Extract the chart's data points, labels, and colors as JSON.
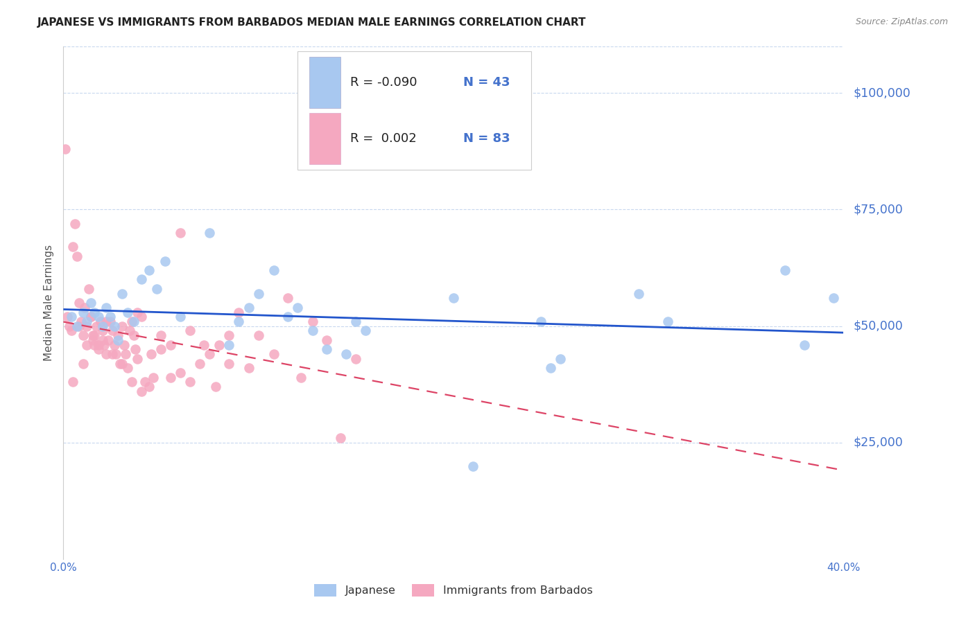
{
  "title": "JAPANESE VS IMMIGRANTS FROM BARBADOS MEDIAN MALE EARNINGS CORRELATION CHART",
  "source": "Source: ZipAtlas.com",
  "ylabel": "Median Male Earnings",
  "xlim": [
    0.0,
    0.4
  ],
  "ylim": [
    0,
    110000
  ],
  "ytick_vals": [
    25000,
    50000,
    75000,
    100000
  ],
  "ytick_labels": [
    "$25,000",
    "$50,000",
    "$75,000",
    "$100,000"
  ],
  "xtick_vals": [
    0.0,
    0.05,
    0.1,
    0.15,
    0.2,
    0.25,
    0.3,
    0.35,
    0.4
  ],
  "xtick_labels": [
    "0.0%",
    "",
    "",
    "",
    "",
    "",
    "",
    "",
    "40.0%"
  ],
  "legend_r_japanese": "-0.090",
  "legend_n_japanese": "43",
  "legend_r_barbados": "0.002",
  "legend_n_barbados": "83",
  "japanese_color": "#a8c8f0",
  "barbados_color": "#f5a8c0",
  "trend_japanese_color": "#2255cc",
  "trend_barbados_color": "#dd4466",
  "background_color": "#ffffff",
  "grid_color": "#c8d8ee",
  "axis_color": "#4472cc",
  "r_text_color": "#222222",
  "japanese_x": [
    0.004,
    0.007,
    0.01,
    0.012,
    0.014,
    0.016,
    0.018,
    0.02,
    0.022,
    0.024,
    0.026,
    0.028,
    0.03,
    0.033,
    0.036,
    0.04,
    0.044,
    0.048,
    0.052,
    0.06,
    0.075,
    0.085,
    0.09,
    0.095,
    0.1,
    0.108,
    0.115,
    0.12,
    0.128,
    0.135,
    0.145,
    0.15,
    0.155,
    0.2,
    0.21,
    0.245,
    0.25,
    0.255,
    0.295,
    0.31,
    0.37,
    0.38,
    0.395
  ],
  "japanese_y": [
    52000,
    50000,
    53000,
    51000,
    55000,
    53000,
    52000,
    50000,
    54000,
    52000,
    50000,
    47000,
    57000,
    53000,
    51000,
    60000,
    62000,
    58000,
    64000,
    52000,
    70000,
    46000,
    51000,
    54000,
    57000,
    62000,
    52000,
    54000,
    49000,
    45000,
    44000,
    51000,
    49000,
    56000,
    20000,
    51000,
    41000,
    43000,
    57000,
    51000,
    62000,
    46000,
    56000
  ],
  "barbados_x": [
    0.001,
    0.002,
    0.003,
    0.004,
    0.005,
    0.006,
    0.007,
    0.008,
    0.009,
    0.01,
    0.011,
    0.012,
    0.013,
    0.014,
    0.015,
    0.015,
    0.016,
    0.017,
    0.018,
    0.019,
    0.02,
    0.021,
    0.022,
    0.023,
    0.024,
    0.025,
    0.026,
    0.027,
    0.028,
    0.029,
    0.03,
    0.031,
    0.032,
    0.033,
    0.034,
    0.035,
    0.036,
    0.037,
    0.038,
    0.04,
    0.042,
    0.044,
    0.046,
    0.05,
    0.055,
    0.06,
    0.065,
    0.072,
    0.078,
    0.085,
    0.09,
    0.095,
    0.1,
    0.108,
    0.115,
    0.122,
    0.128,
    0.135,
    0.142,
    0.15,
    0.038,
    0.005,
    0.008,
    0.01,
    0.012,
    0.014,
    0.016,
    0.018,
    0.02,
    0.022,
    0.025,
    0.03,
    0.035,
    0.04,
    0.045,
    0.05,
    0.055,
    0.06,
    0.065,
    0.07,
    0.075,
    0.08,
    0.085
  ],
  "barbados_y": [
    88000,
    52000,
    50000,
    49000,
    67000,
    72000,
    65000,
    55000,
    51000,
    48000,
    54000,
    50000,
    58000,
    52000,
    47000,
    48000,
    46000,
    50000,
    46000,
    51000,
    49000,
    46000,
    44000,
    47000,
    51000,
    49000,
    46000,
    44000,
    48000,
    42000,
    50000,
    46000,
    44000,
    41000,
    49000,
    51000,
    48000,
    45000,
    43000,
    52000,
    38000,
    37000,
    39000,
    45000,
    39000,
    70000,
    49000,
    46000,
    37000,
    42000,
    53000,
    41000,
    48000,
    44000,
    56000,
    39000,
    51000,
    47000,
    26000,
    43000,
    53000,
    38000,
    50000,
    42000,
    46000,
    52000,
    48000,
    45000,
    47000,
    51000,
    44000,
    42000,
    38000,
    36000,
    44000,
    48000,
    46000,
    40000,
    38000,
    42000,
    44000,
    46000,
    48000
  ]
}
